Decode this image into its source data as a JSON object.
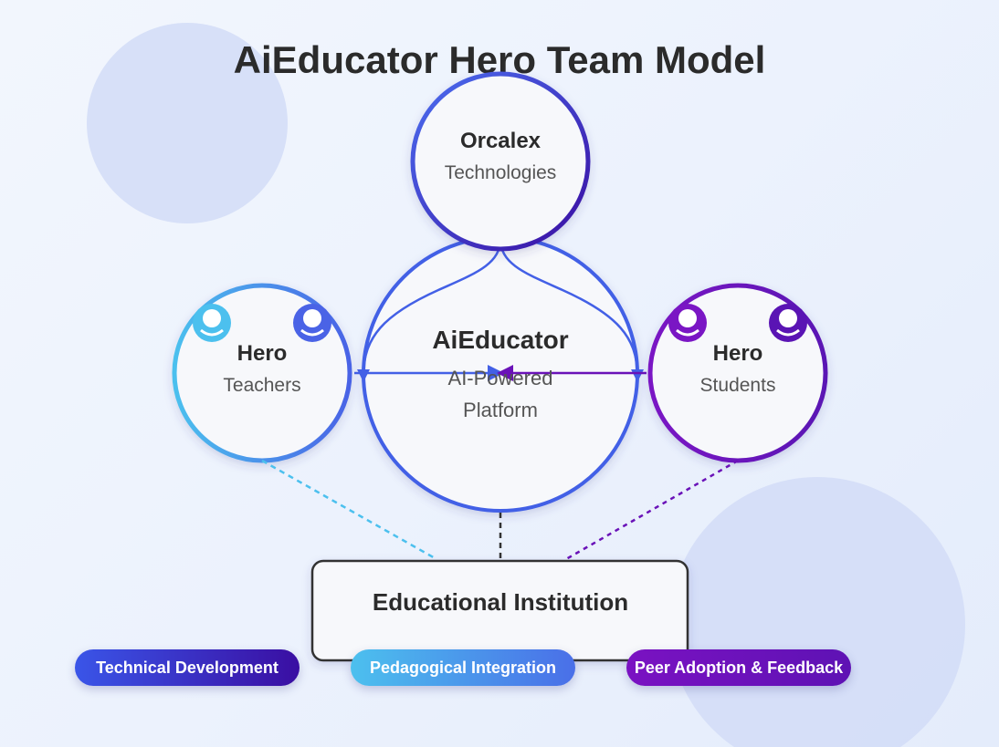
{
  "title": "AiEducator Hero Team Model",
  "nodes": {
    "orcalex": {
      "title": "Orcalex",
      "subtitle": "Technologies"
    },
    "aieducator": {
      "title": "AiEducator",
      "subtitle_line1": "AI-Powered",
      "subtitle_line2": "Platform"
    },
    "teachers": {
      "title": "Hero",
      "subtitle": "Teachers"
    },
    "students": {
      "title": "Hero",
      "subtitle": "Students"
    },
    "institution": {
      "title": "Educational Institution"
    }
  },
  "badges": {
    "technical": "Technical Development",
    "pedagogical": "Pedagogical Integration",
    "peer": "Peer Adoption & Feedback"
  },
  "colors": {
    "blue": "#4360e6",
    "indigo": "#3a0ea2",
    "cyan": "#4cc0ee",
    "purple": "#6a12b8",
    "text_dark": "#2b2b2b",
    "text_muted": "#555555",
    "node_fill": "#f7f8fb",
    "deco_circle": "#d2dcf7"
  }
}
